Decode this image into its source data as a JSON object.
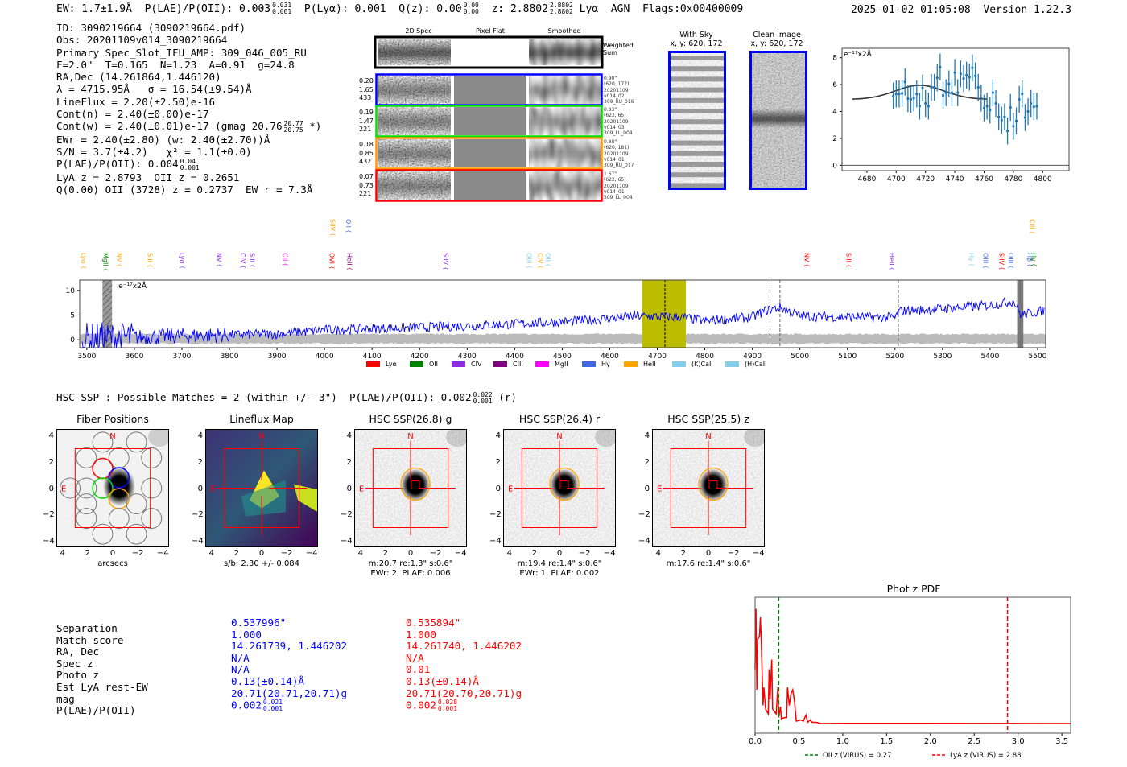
{
  "header": {
    "ew": "EW: 1.7±1.9Å",
    "plae_label": "P(LAE)/P(OII): 0.003",
    "plae_hi": "0.031",
    "plae_lo": "0.001",
    "plya": "P(Lyα): 0.001",
    "qz": "Q(z): 0.00",
    "qz_hi": "0.00",
    "qz_lo": "0.00",
    "z": "z: 2.8802",
    "z_hi": "2.8802",
    "z_lo": "2.8802",
    "z_line": "Lyα",
    "agn": "AGN",
    "flags": "Flags:0x00400009",
    "datetime": "2025-01-02 01:05:08",
    "version": "Version 1.22.3"
  },
  "info": {
    "lines": [
      "ID: 3090219664 (3090219664.pdf)",
      "Obs: 20201109v014_3090219664",
      "Primary Spec_Slot_IFU_AMP: 309_046_005_RU",
      "F=2.0\"  T=0.165  N=1.23  A=0.91  g=24.8",
      "RA,Dec (14.261864,1.446120)",
      "λ = 4715.95Å   σ = 16.54(±9.54)Å",
      "LineFlux = 2.20(±2.50)e-16",
      "Cont(n) = 2.40(±0.00)e-17"
    ],
    "contw": "Cont(w) = 2.40(±0.01)e-17 (gmag 20.76",
    "contw_hi": "20.77",
    "contw_lo": "20.75",
    "contw_end": " *)",
    "ewr": "EWr = 2.40(±2.80) (w: 2.40(±2.70))Å",
    "sn": "S/N = 3.7(±4.2)   χ² = 1.1(±0.0)",
    "plae": "P(LAE)/P(OII): 0.004",
    "plae_hi": "0.04",
    "plae_lo": "0.001",
    "z": "LyA z = 2.8793  OII z = 0.2651",
    "q": "Q(0.00) OII (3728) z = 0.2737  EW r = 7.3Å"
  },
  "spec2d": {
    "columns": [
      "2D Spec",
      "Pixel Flat",
      "Smoothed"
    ],
    "weighted_label": "Weighted Sum",
    "rows": [
      {
        "color": "#0000ff",
        "left": [
          "0.20",
          "1.65",
          "433"
        ],
        "right": [
          "0.90\"",
          "(620, 172)",
          "20201109",
          "v014_02",
          "309_RU_016"
        ]
      },
      {
        "color": "#00dd00",
        "left": [
          "0.19",
          "1.47",
          "221"
        ],
        "right": [
          "0.83\"",
          "(622, 65)",
          "20201109",
          "v014_03",
          "309_LL_004"
        ]
      },
      {
        "color": "#ff9900",
        "left": [
          "0.18",
          "0.85",
          "432"
        ],
        "right": [
          "0.88\"",
          "(620, 181)",
          "20201109",
          "v014_01",
          "309_RU_017"
        ]
      },
      {
        "color": "#ff0000",
        "left": [
          "0.07",
          "0.73",
          "221"
        ],
        "right": [
          "1.67\"",
          "(622, 65)",
          "20201109",
          "v014_01",
          "309_LL_004"
        ]
      }
    ]
  },
  "stamps": {
    "with_sky": "With Sky",
    "with_sky_xy": "x, y: 620, 172",
    "clean": "Clean Image",
    "clean_xy": "x, y: 620, 172"
  },
  "chart_data": [
    {
      "type": "line",
      "title": "zoom spectrum",
      "ylabel": "e⁻¹⁷x2Å",
      "xlim": [
        4663,
        4818
      ],
      "ylim": [
        -0.4,
        8.7
      ],
      "xticks": [
        4680,
        4700,
        4720,
        4740,
        4760,
        4780,
        4800
      ],
      "yticks": [
        0,
        2,
        4,
        6,
        8
      ],
      "x": [
        4698,
        4700,
        4702,
        4704,
        4706,
        4708,
        4710,
        4712,
        4714,
        4716,
        4718,
        4720,
        4722,
        4724,
        4726,
        4728,
        4730,
        4732,
        4734,
        4736,
        4738,
        4740,
        4742,
        4744,
        4746,
        4748,
        4750,
        4752,
        4754,
        4756,
        4758,
        4760,
        4762,
        4764,
        4766,
        4768,
        4770,
        4772,
        4774,
        4776,
        4778,
        4780,
        4782,
        4784,
        4786,
        4788,
        4790,
        4792,
        4794,
        4796
      ],
      "y": [
        5.15,
        5.3,
        5.3,
        5.35,
        6.2,
        4.95,
        4.9,
        5.0,
        5.3,
        4.4,
        5.75,
        4.6,
        4.4,
        5.8,
        5.8,
        6.5,
        7.3,
        5.2,
        5.4,
        6.05,
        5.4,
        6.9,
        5.4,
        6.8,
        6.45,
        6.7,
        6.55,
        7.25,
        6.65,
        5.8,
        5.0,
        4.25,
        4.4,
        4.1,
        5.4,
        4.6,
        3.6,
        3.35,
        3.6,
        2.55,
        4.3,
        2.9,
        3.3,
        4.9,
        5.3,
        3.55,
        4.0,
        4.6,
        4.35,
        4.4
      ],
      "yerr": 1.0,
      "fit": {
        "center": 4716,
        "sigma": 16.5,
        "amplitude": 1.05,
        "baseline": 4.9,
        "range": [
          4670,
          4762
        ]
      },
      "colors": {
        "points": "#1f77b4",
        "fit": "#333333"
      }
    },
    {
      "type": "line",
      "title": "full spectrum",
      "ylabel": "e⁻¹⁷x2Å",
      "xlim": [
        3485,
        5517
      ],
      "ylim": [
        -1.6,
        12.1
      ],
      "xticks": [
        3500,
        3600,
        3700,
        3800,
        3900,
        4000,
        4100,
        4200,
        4300,
        4400,
        4500,
        4600,
        4700,
        4800,
        4900,
        5000,
        5100,
        5200,
        5300,
        5400,
        5500
      ],
      "yticks": [
        0,
        5,
        10
      ],
      "continuum": [
        [
          3500,
          0.3
        ],
        [
          3700,
          0.8
        ],
        [
          3900,
          1.2
        ],
        [
          4000,
          2
        ],
        [
          4200,
          2.5
        ],
        [
          4400,
          3.2
        ],
        [
          4550,
          3.9
        ],
        [
          4650,
          4.8
        ],
        [
          4750,
          4.6
        ],
        [
          4800,
          3.8
        ],
        [
          4900,
          4.6
        ],
        [
          4930,
          6
        ],
        [
          4960,
          6.5
        ],
        [
          5000,
          4.8
        ],
        [
          5200,
          4.5
        ],
        [
          5210,
          5.8
        ],
        [
          5300,
          6.3
        ],
        [
          5400,
          7
        ],
        [
          5450,
          7.8
        ],
        [
          5465,
          5
        ],
        [
          5517,
          6
        ]
      ],
      "highlight": [
        4668,
        4760
      ],
      "line_center": 4716,
      "dashed": [
        4937,
        4958,
        5207
      ],
      "masked": [
        [
          3533,
          3553
        ],
        [
          5457,
          5470
        ]
      ],
      "line_labels": [
        {
          "t": "Lyα",
          "c": "#ffa500",
          "w": 3493,
          "r": 0
        },
        {
          "t": "MgII",
          "c": "#008000",
          "w": 3539,
          "r": 0
        },
        {
          "t": "NV",
          "c": "#ffa500",
          "w": 3568,
          "r": 0
        },
        {
          "t": "SiII",
          "c": "#ffa500",
          "w": 3632,
          "r": 0
        },
        {
          "t": "Lyα",
          "c": "#8a2be2",
          "w": 3700,
          "r": 0
        },
        {
          "t": "NV",
          "c": "#8a2be2",
          "w": 3778,
          "r": 0
        },
        {
          "t": "CIV",
          "c": "#8a2be2",
          "w": 3828,
          "r": 0
        },
        {
          "t": "SiII",
          "c": "#8a2be2",
          "w": 3847,
          "r": 0
        },
        {
          "t": "CII",
          "c": "#ff00ff",
          "w": 3917,
          "r": 0
        },
        {
          "t": "OVI",
          "c": "#ff0000",
          "w": 4015,
          "r": 0
        },
        {
          "t": "HeII",
          "c": "#800080",
          "w": 4052,
          "r": 0
        },
        {
          "t": "SiIV",
          "c": "#ffa500",
          "w": 4017,
          "r": 1
        },
        {
          "t": "OII",
          "c": "#4169e1",
          "w": 4050,
          "r": 1
        },
        {
          "t": "SiIV",
          "c": "#8a2be2",
          "w": 4255,
          "r": 0
        },
        {
          "t": "OIII",
          "c": "#87ceeb",
          "w": 4430,
          "r": 0
        },
        {
          "t": "CIV",
          "c": "#ffa500",
          "w": 4454,
          "r": 0
        },
        {
          "t": "OII",
          "c": "#87ceeb",
          "w": 4470,
          "r": 0
        },
        {
          "t": "NV",
          "c": "#ff0000",
          "w": 5014,
          "r": 0
        },
        {
          "t": "SiII",
          "c": "#ff0000",
          "w": 5102,
          "r": 0
        },
        {
          "t": "HeII",
          "c": "#8a2be2",
          "w": 5193,
          "r": 0
        },
        {
          "t": "Hγ",
          "c": "#87ceeb",
          "w": 5360,
          "r": 0
        },
        {
          "t": "Hβ",
          "c": "#4169e1",
          "w": 5483,
          "r": 0
        },
        {
          "t": "OIII",
          "c": "#4169e1",
          "w": 5390,
          "r": 2
        },
        {
          "t": "SiIV",
          "c": "#ff0000",
          "w": 5424,
          "r": 2
        },
        {
          "t": "OIII",
          "c": "#4169e1",
          "w": 5443,
          "r": 2
        },
        {
          "t": "CIII",
          "c": "#ffa500",
          "w": 5488,
          "r": 1
        },
        {
          "t": "Hγ",
          "c": "#008000",
          "w": 5492,
          "r": 0
        }
      ],
      "legend": [
        {
          "t": "Lyα",
          "c": "#ff0000"
        },
        {
          "t": "OII",
          "c": "#008000"
        },
        {
          "t": "CIV",
          "c": "#8a2be2"
        },
        {
          "t": "CIII",
          "c": "#800080"
        },
        {
          "t": "MgII",
          "c": "#ff00ff"
        },
        {
          "t": "Hγ",
          "c": "#4169e1"
        },
        {
          "t": "HeII",
          "c": "#ffa500"
        },
        {
          "t": "(K)CaII",
          "c": "#87ceeb"
        },
        {
          "t": "(H)CaII",
          "c": "#87ceeb"
        }
      ],
      "colors": {
        "flux": "#0000ff",
        "error": "#aaaaaa",
        "highlight": "#bcbc00"
      }
    },
    {
      "type": "line",
      "title": "Phot z PDF",
      "xlim": [
        0,
        3.6
      ],
      "xticks": [
        0.0,
        0.5,
        1.0,
        1.5,
        2.0,
        2.5,
        3.0,
        3.5
      ],
      "vlines": [
        {
          "x": 0.27,
          "color": "#008000",
          "label": "OII z (VIRUS) = 0.27"
        },
        {
          "x": 2.88,
          "color": "#ff0000",
          "label": "LyA z (VIRUS) = 2.88"
        }
      ],
      "pdf": [
        [
          0,
          0.45
        ],
        [
          0.01,
          0.95
        ],
        [
          0.02,
          0.28
        ],
        [
          0.03,
          0.7
        ],
        [
          0.05,
          0.72
        ],
        [
          0.06,
          0.88
        ],
        [
          0.07,
          0.7
        ],
        [
          0.09,
          0.15
        ],
        [
          0.1,
          0.3
        ],
        [
          0.12,
          0.12
        ],
        [
          0.15,
          0.08
        ],
        [
          0.16,
          0.45
        ],
        [
          0.17,
          0.2
        ],
        [
          0.19,
          0.53
        ],
        [
          0.2,
          0.12
        ],
        [
          0.22,
          0.1
        ],
        [
          0.24,
          0.08
        ],
        [
          0.26,
          0.3
        ],
        [
          0.27,
          0.05
        ],
        [
          0.29,
          0.14
        ],
        [
          0.3,
          0.04
        ],
        [
          0.34,
          0.05
        ],
        [
          0.36,
          0.05
        ],
        [
          0.37,
          0.3
        ],
        [
          0.39,
          0.15
        ],
        [
          0.41,
          0.25
        ],
        [
          0.43,
          0.28
        ],
        [
          0.45,
          0.18
        ],
        [
          0.47,
          0.02
        ],
        [
          0.52,
          0.03
        ],
        [
          0.55,
          0.02
        ],
        [
          0.58,
          0.07
        ],
        [
          0.6,
          0.01
        ],
        [
          0.63,
          0.03
        ],
        [
          0.65,
          0.01
        ],
        [
          0.7,
          0.01
        ],
        [
          0.75,
          0
        ],
        [
          1.0,
          0.002
        ],
        [
          3.6,
          0
        ]
      ]
    }
  ],
  "hsc": {
    "title": "HSC-SSP : Possible Matches = 2 (within +/- 3\")  P(LAE)/P(OII): 0.002",
    "hi": "0.022",
    "lo": "0.001",
    "band": " (r)",
    "panels": [
      {
        "kind": "fiber",
        "title": "Fiber Positions",
        "cap1": "arcsecs",
        "cap2": ""
      },
      {
        "kind": "lineflux",
        "title": "Lineflux Map",
        "cap1": "s/b: 2.30 +/- 0.084",
        "cap2": ""
      },
      {
        "kind": "hsc",
        "title": "HSC SSP(26.8) g",
        "cap1": "m:20.7  re:1.3\"  s:0.6\"",
        "cap2": "EWr: 2, PLAE: 0.006"
      },
      {
        "kind": "hsc",
        "title": "HSC SSP(26.4) r",
        "cap1": "m:19.4  re:1.4\"  s:0.6\"",
        "cap2": "EWr: 1, PLAE: 0.002"
      },
      {
        "kind": "hsc",
        "title": "HSC SSP(25.5) z",
        "cap1": "m:17.6  re:1.4\"  s:0.6\"",
        "cap2": ""
      }
    ],
    "ticks": [
      "4",
      "2",
      "0",
      "−2",
      "−4"
    ],
    "north": "N",
    "east": "E"
  },
  "matches": {
    "labels": [
      "Separation",
      "Match score",
      "RA, Dec",
      "Spec z",
      "Photo z",
      "Est LyA rest-EW",
      "mag",
      "P(LAE)/P(OII)"
    ],
    "blue": {
      "color": "#0000ff",
      "values": [
        "0.537996\"",
        "1.000",
        "14.261739, 1.446202",
        "N/A",
        "N/A",
        "0.13(±0.14)Å",
        "20.71(20.71,20.71)g",
        "0.002"
      ],
      "hi": "0.021",
      "lo": "0.001"
    },
    "red": {
      "color": "#ff0000",
      "values": [
        "0.535894\"",
        "1.000",
        "14.261740, 1.446202",
        "N/A",
        "0.01",
        "0.13(±0.14)Å",
        "20.71(20.70,20.71)g",
        "0.002"
      ],
      "hi": "0.028",
      "lo": "0.001"
    }
  }
}
